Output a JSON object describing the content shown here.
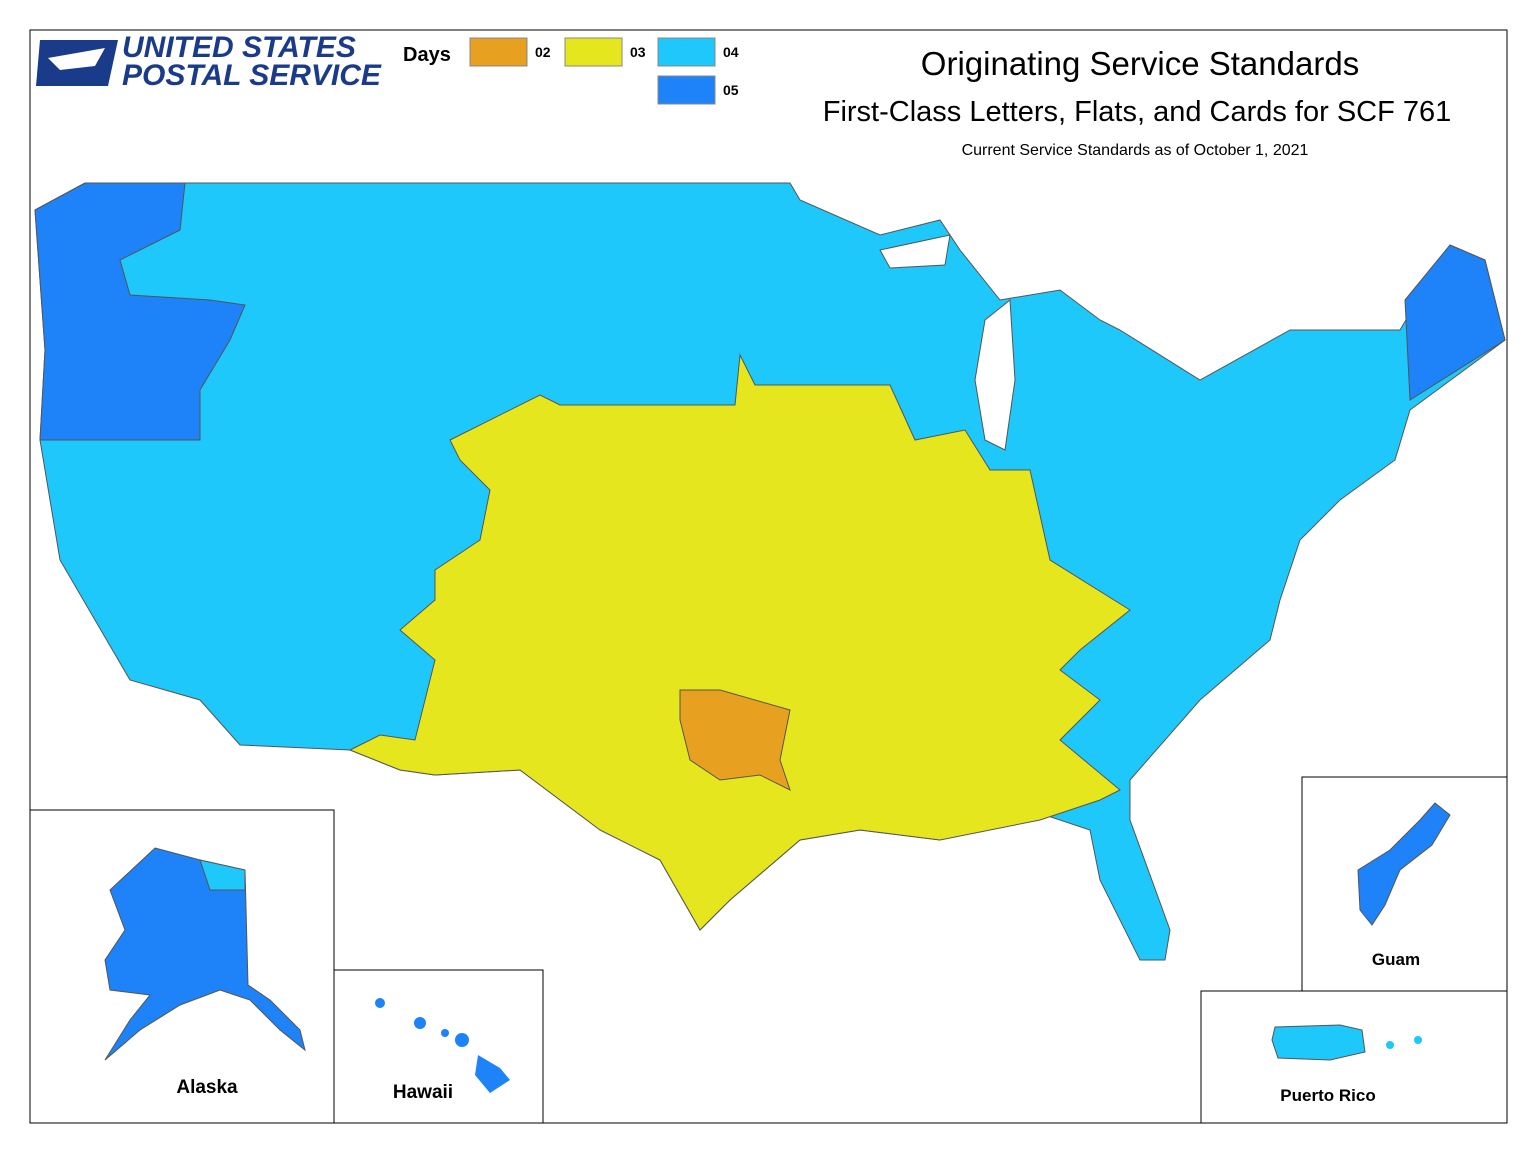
{
  "header": {
    "logo": [
      "UNITED STATES",
      "POSTAL SERVICE"
    ],
    "title": "Originating Service Standards",
    "subtitle": "First-Class Letters, Flats, and Cards for SCF 761",
    "note": "Current Service Standards as of October 1, 2021"
  },
  "legend": {
    "title": "Days",
    "items": [
      {
        "label": "02",
        "color": "#e8a020"
      },
      {
        "label": "03",
        "color": "#e6e61e"
      },
      {
        "label": "04",
        "color": "#1ec8fa"
      },
      {
        "label": "05",
        "color": "#1e82f8"
      }
    ]
  },
  "insets": [
    "Alaska",
    "Hawaii",
    "Guam",
    "Puerto Rico"
  ]
}
